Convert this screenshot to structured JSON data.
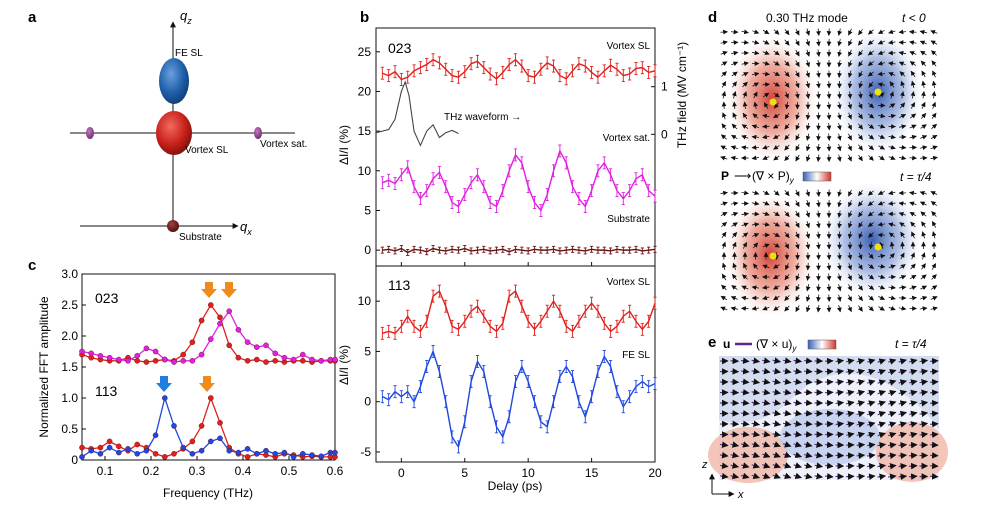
{
  "panels": {
    "a": {
      "letter": "a",
      "axis_qz": "q",
      "axis_qz_sub": "z",
      "axis_qx": "q",
      "axis_qx_sub": "x",
      "labels": {
        "fe_sl": "FE SL",
        "vortex_sl": "Vortex SL",
        "vortex_sat": "Vortex sat.",
        "substrate": "Substrate"
      },
      "colors": {
        "fe_sl": "#1f5fa8",
        "vortex_sl": "#c8201a",
        "vortex_sat": "#8a3c8a",
        "substrate": "#6b1a1a"
      }
    },
    "b": {
      "letter": "b",
      "top_tag": "023",
      "bottom_tag": "113",
      "ylabel": "ΔI/I (%)",
      "ylabel_right": "THz field (MV cm⁻¹)",
      "xlabel": "Delay (ps)",
      "labels": {
        "vortex_sl": "Vortex SL",
        "vortex_sat": "Vortex sat.",
        "substrate": "Substrate",
        "thz": "THz waveform →",
        "vortex_sl2": "Vortex SL",
        "fe_sl": "FE SL"
      },
      "top_yticks": [
        "0",
        "5",
        "10",
        "15",
        "20",
        "25"
      ],
      "right_yticks": [
        "0",
        "1"
      ],
      "bottom_yticks": [
        "-5",
        "0",
        "5",
        "10"
      ],
      "xticks": [
        "0",
        "5",
        "10",
        "15",
        "20"
      ],
      "colors": {
        "red": "#e0201c",
        "magenta": "#e020e0",
        "darkred": "#6b1212",
        "blue": "#2048e0",
        "grey": "#444444"
      }
    },
    "c": {
      "letter": "c",
      "ylabel": "Normalized FFT amplitude",
      "xlabel": "Frequency (THz)",
      "tag_023": "023",
      "tag_113": "113",
      "yticks": [
        "0",
        "0.5",
        "1.0",
        "1.5",
        "2.0",
        "2.5",
        "3.0"
      ],
      "xticks": [
        "0.1",
        "0.2",
        "0.3",
        "0.4",
        "0.5",
        "0.6"
      ],
      "arrow_colors": {
        "orange": "#f08a1c",
        "blue": "#1f7fe0"
      }
    },
    "d": {
      "letter": "d",
      "mode_title": "0.30 THz mode",
      "t1": "t < 0",
      "eq_p": "P",
      "eq_arrow": "⟶",
      "eq_curl": "(∇ × P)",
      "eq_sub": "y",
      "t2": "t = τ/4"
    },
    "e": {
      "letter": "e",
      "eq_u": "u",
      "eq_curl": "(∇ × u)",
      "eq_sub": "y",
      "t": "t = τ/4",
      "axis_z": "z",
      "axis_x": "x"
    }
  },
  "chart_data": [
    {
      "panel": "b-top",
      "type": "line",
      "xlabel": "Delay (ps)",
      "ylabel": "ΔI/I (%)",
      "xlim": [
        -2,
        20
      ],
      "ylim": [
        -2,
        28
      ],
      "series": [
        {
          "name": "Vortex SL",
          "color": "#e0201c",
          "x": [
            -1.5,
            -1,
            -0.5,
            0,
            0.5,
            1,
            1.5,
            2,
            2.5,
            3,
            3.5,
            4,
            4.5,
            5,
            5.5,
            6,
            6.5,
            7,
            7.5,
            8,
            8.5,
            9,
            9.5,
            10,
            10.5,
            11,
            11.5,
            12,
            12.5,
            13,
            13.5,
            14,
            14.5,
            15,
            15.5,
            16,
            16.5,
            17,
            17.5,
            18,
            18.5,
            19,
            19.5,
            20
          ],
          "y": [
            22.3,
            22.0,
            22.5,
            21.5,
            21.8,
            22.6,
            23.0,
            23.4,
            24.0,
            23.6,
            22.8,
            22.0,
            21.8,
            22.5,
            23.5,
            23.8,
            23.0,
            22.2,
            21.6,
            22.4,
            23.4,
            24.0,
            23.2,
            22.0,
            21.8,
            22.8,
            23.6,
            23.2,
            22.0,
            21.6,
            22.6,
            23.5,
            23.2,
            22.4,
            21.8,
            22.6,
            23.3,
            22.8,
            22.0,
            22.2,
            22.9,
            23.0,
            22.4,
            22.6
          ]
        },
        {
          "name": "Vortex sat.",
          "color": "#e020e0",
          "x": [
            -1.5,
            -1,
            -0.5,
            0,
            0.5,
            1,
            1.5,
            2,
            2.5,
            3,
            3.5,
            4,
            4.5,
            5,
            5.5,
            6,
            6.5,
            7,
            7.5,
            8,
            8.5,
            9,
            9.5,
            10,
            10.5,
            11,
            11.5,
            12,
            12.5,
            13,
            13.5,
            14,
            14.5,
            15,
            15.5,
            16,
            16.5,
            17,
            17.5,
            18,
            18.5,
            19,
            19.5,
            20
          ],
          "y": [
            8.5,
            8.8,
            8.4,
            9.5,
            10.5,
            8.0,
            6.5,
            7.5,
            9.0,
            9.8,
            8.0,
            6.0,
            5.5,
            7.0,
            8.5,
            9.5,
            8.0,
            6.0,
            5.5,
            7.5,
            10.0,
            12.0,
            11.0,
            8.0,
            6.0,
            5.0,
            7.0,
            10.0,
            12.5,
            11.0,
            8.0,
            6.5,
            5.5,
            7.5,
            10.0,
            11.0,
            9.5,
            7.5,
            6.5,
            7.5,
            9.0,
            9.5,
            7.5,
            6.8
          ]
        },
        {
          "name": "Substrate",
          "color": "#6b1212",
          "x": [
            -1.5,
            -1,
            -0.5,
            0,
            0.5,
            1,
            1.5,
            2,
            2.5,
            3,
            3.5,
            4,
            4.5,
            5,
            5.5,
            6,
            6.5,
            7,
            7.5,
            8,
            8.5,
            9,
            9.5,
            10,
            10.5,
            11,
            11.5,
            12,
            12.5,
            13,
            13.5,
            14,
            14.5,
            15,
            15.5,
            16,
            16.5,
            17,
            17.5,
            18,
            18.5,
            19,
            19.5,
            20
          ],
          "y": [
            0,
            0.1,
            -0.1,
            0.2,
            -0.3,
            0.1,
            0,
            -0.2,
            0.2,
            0,
            -0.1,
            0.1,
            0,
            0.2,
            -0.1,
            0,
            0.1,
            -0.1,
            0,
            0.1,
            -0.2,
            0.1,
            0,
            -0.1,
            0.1,
            0,
            0,
            0.1,
            -0.1,
            0,
            0.1,
            0,
            -0.1,
            0.1,
            0,
            0,
            -0.1,
            0.1,
            0,
            0,
            0.1,
            -0.1,
            0,
            0.1
          ]
        },
        {
          "name": "THz waveform",
          "color": "#444444",
          "x": [
            -2,
            -1,
            -0.5,
            0,
            0.3,
            0.6,
            1,
            1.5,
            2,
            2.5,
            3,
            3.5,
            4,
            4.5
          ],
          "y": [
            14.8,
            15.2,
            16.5,
            20,
            21.2,
            19.5,
            15,
            13.2,
            15.0,
            15.8,
            14.2,
            14.8,
            15.1,
            14.7
          ]
        }
      ]
    },
    {
      "panel": "b-bottom",
      "type": "line",
      "xlabel": "Delay (ps)",
      "ylabel": "ΔI/I (%)",
      "xlim": [
        -2,
        20
      ],
      "ylim": [
        -6,
        13.5
      ],
      "series": [
        {
          "name": "Vortex SL",
          "color": "#e0201c",
          "x": [
            -1.5,
            -1,
            -0.5,
            0,
            0.5,
            1,
            1.5,
            2,
            2.5,
            3,
            3.5,
            4,
            4.5,
            5,
            5.5,
            6,
            6.5,
            7,
            7.5,
            8,
            8.5,
            9,
            9.5,
            10,
            10.5,
            11,
            11.5,
            12,
            12.5,
            13,
            13.5,
            14,
            14.5,
            15,
            15.5,
            16,
            16.5,
            17,
            17.5,
            18,
            18.5,
            19,
            19.5,
            20
          ],
          "y": [
            6.8,
            7.0,
            6.8,
            7.5,
            8.5,
            7.5,
            7.0,
            8.0,
            10.5,
            11.0,
            9.5,
            7.5,
            7.2,
            8.0,
            9.0,
            9.5,
            8.5,
            7.5,
            7.0,
            7.8,
            10.5,
            11.0,
            9.5,
            8.0,
            7.2,
            8.0,
            9.0,
            10.0,
            9.0,
            7.5,
            7.0,
            8.0,
            9.0,
            9.8,
            9.0,
            7.8,
            7.0,
            7.5,
            8.5,
            9.0,
            8.0,
            7.2,
            8.0,
            9.8
          ]
        },
        {
          "name": "FE SL",
          "color": "#2048e0",
          "x": [
            -1.5,
            -1,
            -0.5,
            0,
            0.5,
            1,
            1.5,
            2,
            2.5,
            3,
            3.5,
            4,
            4.5,
            5,
            5.5,
            6,
            6.5,
            7,
            7.5,
            8,
            8.5,
            9,
            9.5,
            10,
            10.5,
            11,
            11.5,
            12,
            12.5,
            13,
            13.5,
            14,
            14.5,
            15,
            15.5,
            16,
            16.5,
            17,
            17.5,
            18,
            18.5,
            19,
            19.5,
            20
          ],
          "y": [
            0.5,
            0.2,
            1.0,
            0.5,
            1.0,
            0.0,
            1.5,
            3.5,
            5.0,
            3.0,
            0.0,
            -3.5,
            -4.5,
            -2.0,
            2.0,
            4.0,
            3.0,
            0.0,
            -2.5,
            -3.5,
            -1.5,
            2.0,
            3.5,
            2.0,
            0.0,
            -2.0,
            -2.5,
            0.0,
            2.5,
            3.5,
            2.5,
            0.0,
            -1.5,
            0.5,
            3.0,
            4.5,
            3.5,
            1.0,
            -0.5,
            0.5,
            1.5,
            2.0,
            1.5,
            1.8
          ]
        }
      ]
    },
    {
      "panel": "c",
      "type": "line",
      "xlabel": "Frequency (THz)",
      "ylabel": "Normalized FFT amplitude",
      "xlim": [
        0.05,
        0.6
      ],
      "ylim": [
        0,
        3.0
      ],
      "series": [
        {
          "name": "023 red",
          "color": "#e0201c",
          "x": [
            0.05,
            0.07,
            0.09,
            0.11,
            0.13,
            0.15,
            0.17,
            0.19,
            0.21,
            0.23,
            0.25,
            0.27,
            0.29,
            0.31,
            0.33,
            0.35,
            0.37,
            0.39,
            0.41,
            0.43,
            0.45,
            0.47,
            0.49,
            0.51,
            0.53,
            0.55,
            0.57,
            0.59,
            0.6
          ],
          "y": [
            1.7,
            1.65,
            1.62,
            1.6,
            1.6,
            1.65,
            1.6,
            1.58,
            1.6,
            1.62,
            1.6,
            1.7,
            1.9,
            2.25,
            2.5,
            2.3,
            1.85,
            1.65,
            1.6,
            1.62,
            1.58,
            1.6,
            1.58,
            1.6,
            1.6,
            1.58,
            1.6,
            1.6,
            1.6
          ]
        },
        {
          "name": "023 magenta",
          "color": "#e020e0",
          "x": [
            0.05,
            0.07,
            0.09,
            0.11,
            0.13,
            0.15,
            0.17,
            0.19,
            0.21,
            0.23,
            0.25,
            0.27,
            0.29,
            0.31,
            0.33,
            0.35,
            0.37,
            0.39,
            0.41,
            0.43,
            0.45,
            0.47,
            0.49,
            0.51,
            0.53,
            0.55,
            0.57,
            0.59,
            0.6
          ],
          "y": [
            1.75,
            1.72,
            1.68,
            1.65,
            1.62,
            1.6,
            1.68,
            1.8,
            1.75,
            1.62,
            1.58,
            1.6,
            1.6,
            1.7,
            1.95,
            2.2,
            2.4,
            2.1,
            1.9,
            1.82,
            1.85,
            1.72,
            1.65,
            1.62,
            1.7,
            1.62,
            1.6,
            1.62,
            1.62
          ]
        },
        {
          "name": "113 red",
          "color": "#e0201c",
          "x": [
            0.05,
            0.07,
            0.09,
            0.11,
            0.13,
            0.15,
            0.17,
            0.19,
            0.21,
            0.23,
            0.25,
            0.27,
            0.29,
            0.31,
            0.33,
            0.35,
            0.37,
            0.39,
            0.41,
            0.43,
            0.45,
            0.47,
            0.49,
            0.51,
            0.53,
            0.55,
            0.57,
            0.59,
            0.6
          ],
          "y": [
            0.2,
            0.18,
            0.2,
            0.3,
            0.22,
            0.15,
            0.25,
            0.2,
            0.1,
            0.05,
            0.1,
            0.18,
            0.3,
            0.55,
            1.0,
            0.6,
            0.2,
            0.1,
            0.05,
            0.1,
            0.08,
            0.05,
            0.1,
            0.08,
            0.05,
            0.06,
            0.05,
            0.05,
            0.05
          ]
        },
        {
          "name": "113 blue",
          "color": "#2048e0",
          "x": [
            0.05,
            0.07,
            0.09,
            0.11,
            0.13,
            0.15,
            0.17,
            0.19,
            0.21,
            0.23,
            0.25,
            0.27,
            0.29,
            0.31,
            0.33,
            0.35,
            0.37,
            0.39,
            0.41,
            0.43,
            0.45,
            0.47,
            0.49,
            0.51,
            0.53,
            0.55,
            0.57,
            0.59,
            0.6
          ],
          "y": [
            0.05,
            0.15,
            0.1,
            0.2,
            0.12,
            0.18,
            0.1,
            0.15,
            0.4,
            1.0,
            0.55,
            0.2,
            0.1,
            0.15,
            0.3,
            0.35,
            0.15,
            0.12,
            0.18,
            0.1,
            0.15,
            0.1,
            0.12,
            0.05,
            0.1,
            0.08,
            0.06,
            0.12,
            0.12
          ]
        }
      ]
    }
  ]
}
